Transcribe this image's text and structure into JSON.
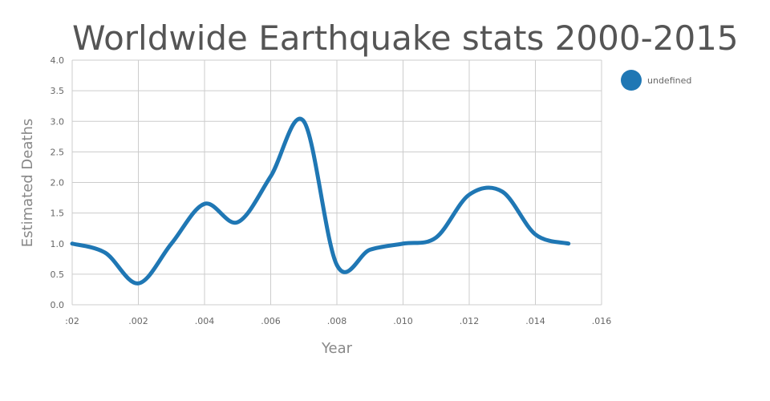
{
  "chart_data": {
    "type": "line",
    "title": "Worldwide Earthquake stats 2000-2015",
    "xlabel": "Year",
    "ylabel": "Estimated Deaths",
    "x": [
      2000,
      2001,
      2002,
      2003,
      2004,
      2005,
      2006,
      2007,
      2008,
      2009,
      2010,
      2011,
      2012,
      2013,
      2014,
      2015
    ],
    "series": [
      {
        "name": "undefined",
        "color": "#1f77b4",
        "values": [
          1.0,
          0.85,
          0.35,
          1.0,
          1.65,
          1.35,
          2.1,
          3.0,
          0.65,
          0.9,
          1.0,
          1.1,
          1.8,
          1.85,
          1.15,
          1.0
        ]
      }
    ],
    "xlim": [
      2000,
      2016
    ],
    "ylim": [
      0,
      4
    ],
    "x_tick_values": [
      2000,
      2002,
      2004,
      2006,
      2008,
      2010,
      2012,
      2014,
      2016
    ],
    "x_tick_labels": [
      ":02",
      ".002",
      ".004",
      ".006",
      ".008",
      ".010",
      ".012",
      ".014",
      ".016"
    ],
    "y_tick_values": [
      0,
      0.5,
      1,
      1.5,
      2,
      2.5,
      3,
      3.5,
      4
    ],
    "y_tick_labels": [
      "0.0",
      "0.5",
      "1.0",
      "1.5",
      "2.0",
      "2.5",
      "3.0",
      "3.5",
      "4.0"
    ],
    "grid": true,
    "legend": "top-right"
  }
}
